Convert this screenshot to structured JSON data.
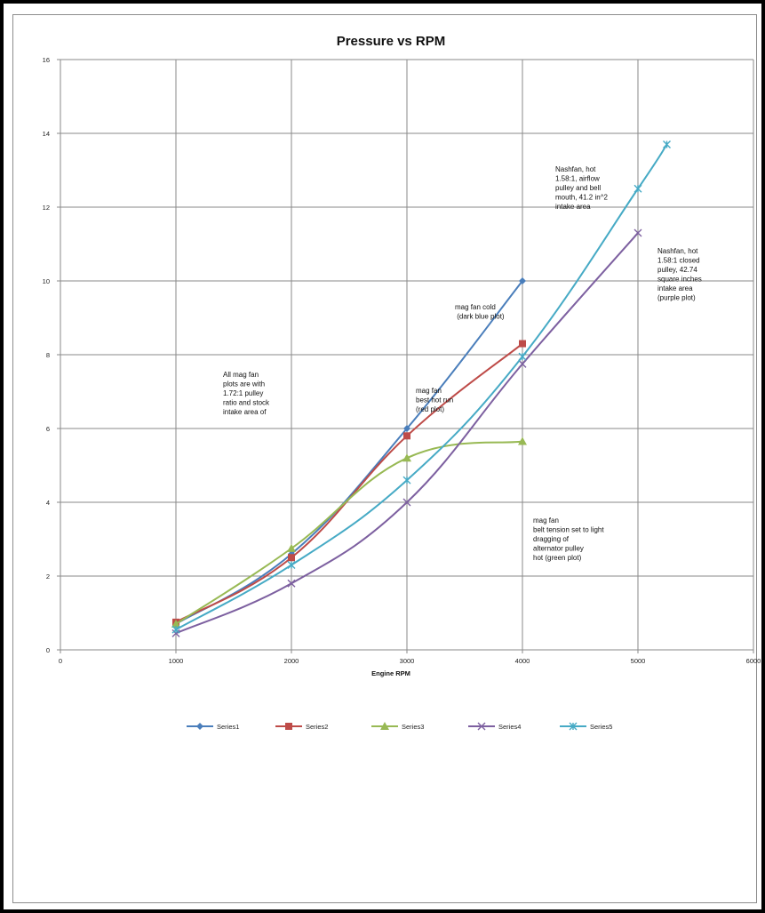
{
  "chart_data": {
    "type": "line",
    "title": "Pressure vs RPM",
    "xlabel": "Engine RPM",
    "ylabel": "",
    "xlim": [
      0,
      6000
    ],
    "ylim": [
      0,
      16
    ],
    "x_ticks": [
      0,
      1000,
      2000,
      3000,
      4000,
      5000,
      6000
    ],
    "y_ticks": [
      0,
      2,
      4,
      6,
      8,
      10,
      12,
      14,
      16
    ],
    "grid": true,
    "legend_position": "bottom",
    "series": [
      {
        "name": "Series1",
        "color": "#4a7ebb",
        "marker": "diamond",
        "x": [
          1000,
          2000,
          3000,
          4000
        ],
        "y": [
          0.7,
          2.6,
          6.0,
          10.0
        ]
      },
      {
        "name": "Series2",
        "color": "#be4b48",
        "marker": "square",
        "x": [
          1000,
          2000,
          3000,
          4000
        ],
        "y": [
          0.75,
          2.5,
          5.8,
          8.3
        ]
      },
      {
        "name": "Series3",
        "color": "#98b954",
        "marker": "triangle",
        "x": [
          1000,
          2000,
          3000,
          4000
        ],
        "y": [
          0.7,
          2.75,
          5.2,
          5.65
        ]
      },
      {
        "name": "Series4",
        "color": "#7d60a0",
        "marker": "x",
        "x": [
          1000,
          2000,
          3000,
          4000,
          5000
        ],
        "y": [
          0.45,
          1.8,
          4.0,
          7.75,
          11.3
        ]
      },
      {
        "name": "Series5",
        "color": "#46aac5",
        "marker": "star",
        "x": [
          1000,
          2000,
          3000,
          4000,
          5000,
          5250
        ],
        "y": [
          0.55,
          2.3,
          4.6,
          7.95,
          12.5,
          13.7
        ]
      }
    ],
    "annotations": [
      {
        "lines": [
          "All mag fan",
          "plots are with",
          "1.72:1 pulley",
          "ratio and stock",
          "intake area of"
        ],
        "bold": false
      },
      {
        "lines": [
          "mag fan  cold",
          " (dark blue plot)"
        ],
        "bold": false
      },
      {
        "lines": [
          "mag fan",
          "best  hot run",
          "(red plot)"
        ],
        "bold": false
      },
      {
        "lines": [
          "mag fan",
          "belt tension set to light",
          "dragging of",
          "alternator pulley",
          "hot (green plot)"
        ],
        "bold": false
      },
      {
        "lines": [
          "Nashfan, hot",
          "1.58:1, airflow",
          "pulley and bell",
          "mouth, 41.2 in^2",
          "intake area"
        ],
        "bold": false
      },
      {
        "lines": [
          "Nashfan, hot",
          "1.58:1 closed",
          "pulley, 42.74",
          "square inches",
          "intake area",
          "(purple plot)"
        ],
        "bold": false
      }
    ]
  }
}
